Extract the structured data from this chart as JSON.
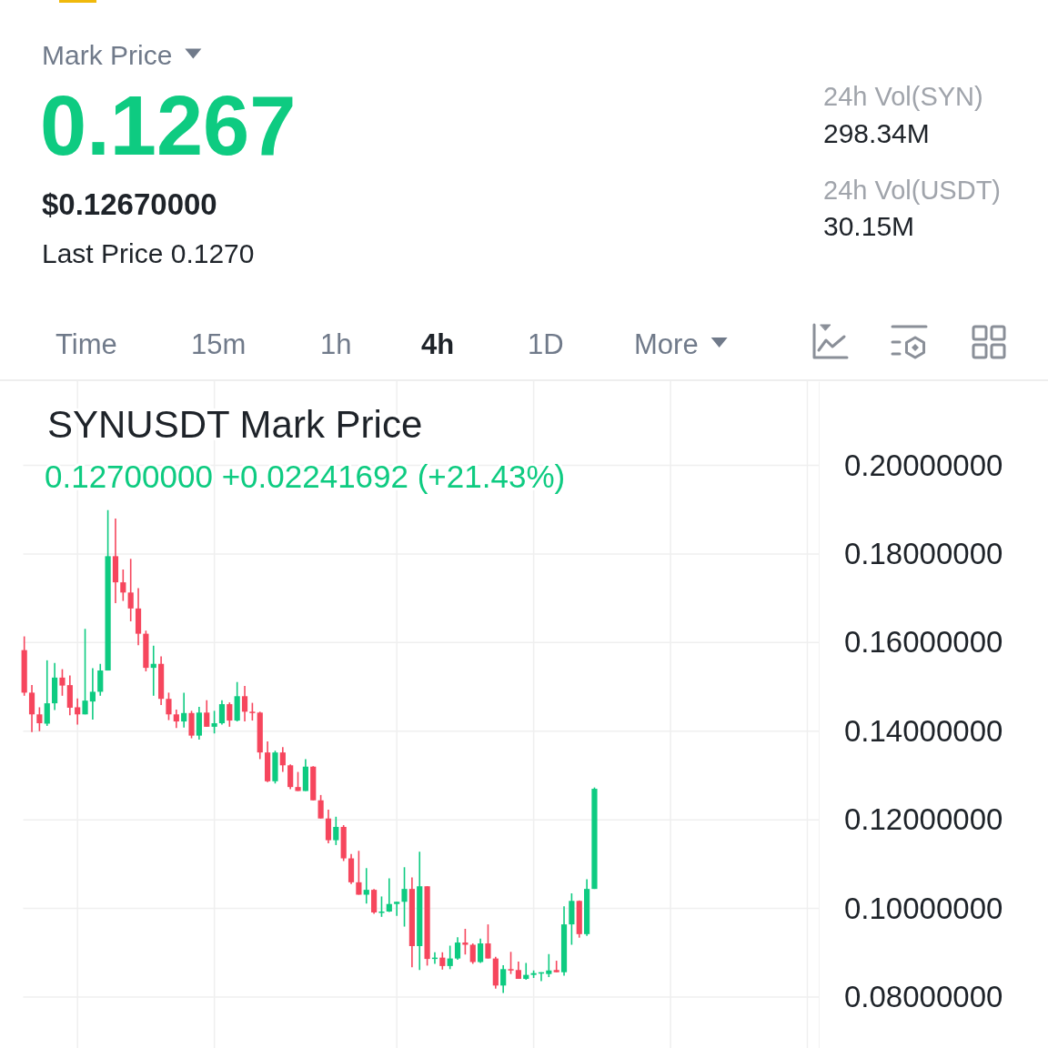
{
  "chart_data": {
    "type": "candlestick",
    "title": "SYNUSDT Mark Price",
    "subtitle": "0.12700000 +0.02241692 (+21.43%)",
    "annotations": [
      "Mark Price",
      "0.1267",
      "$0.12670000",
      "Last Price 0.1270",
      "24h Vol(SYN)",
      "298.34M",
      "24h Vol(USDT)",
      "30.15M",
      "Time",
      "15m",
      "1h",
      "4h",
      "1D",
      "More"
    ],
    "categories": [
      null,
      null,
      null,
      null,
      null,
      null,
      null,
      null,
      null,
      null,
      null,
      null,
      null,
      null,
      null,
      null,
      null,
      null,
      null,
      null,
      null,
      null,
      null,
      null,
      null,
      null,
      null,
      null,
      null,
      null,
      null,
      null,
      null,
      null,
      null,
      null,
      null,
      null,
      null,
      null,
      null,
      null,
      null,
      null,
      null,
      null,
      null,
      null,
      null,
      null,
      null,
      null,
      null,
      null,
      null,
      null,
      null,
      null,
      null,
      null,
      null,
      null,
      null,
      null,
      null,
      null,
      null,
      null,
      null,
      null,
      null,
      null,
      null,
      null,
      null,
      null,
      null,
      null,
      null,
      null,
      null,
      null,
      null,
      null,
      null,
      null,
      null,
      null,
      null,
      null,
      null,
      null,
      null,
      null,
      null,
      null,
      null,
      null,
      null,
      null,
      null,
      null,
      null,
      null,
      null
    ],
    "ohlc": [
      [
        0.1583,
        0.1614,
        0.148,
        0.1487
      ],
      [
        0.1487,
        0.1504,
        0.1398,
        0.1438
      ],
      [
        0.1438,
        0.1454,
        0.14,
        0.1418
      ],
      [
        0.1417,
        0.156,
        0.1412,
        0.1463
      ],
      [
        0.1463,
        0.1554,
        0.1448,
        0.1521
      ],
      [
        0.1521,
        0.154,
        0.148,
        0.1503
      ],
      [
        0.1504,
        0.1526,
        0.1436,
        0.1453
      ],
      [
        0.1454,
        0.1474,
        0.1415,
        0.1438
      ],
      [
        0.1438,
        0.1631,
        0.1438,
        0.1469
      ],
      [
        0.1467,
        0.1542,
        0.1426,
        0.1489
      ],
      [
        0.1489,
        0.1552,
        0.148,
        0.1537
      ],
      [
        0.1537,
        0.1899,
        0.1537,
        0.1795
      ],
      [
        0.1795,
        0.188,
        0.1689,
        0.1736
      ],
      [
        0.1736,
        0.1765,
        0.1694,
        0.1713
      ],
      [
        0.1713,
        0.1789,
        0.1648,
        0.1677
      ],
      [
        0.1677,
        0.1723,
        0.1594,
        0.162
      ],
      [
        0.162,
        0.1627,
        0.1535,
        0.1543
      ],
      [
        0.1543,
        0.1593,
        0.148,
        0.1552
      ],
      [
        0.1552,
        0.1569,
        0.1459,
        0.1473
      ],
      [
        0.1473,
        0.1487,
        0.1425,
        0.1438
      ],
      [
        0.1438,
        0.1449,
        0.1407,
        0.1422
      ],
      [
        0.1422,
        0.1487,
        0.1408,
        0.1441
      ],
      [
        0.1441,
        0.1446,
        0.1384,
        0.139
      ],
      [
        0.139,
        0.1455,
        0.1381,
        0.1442
      ],
      [
        0.1442,
        0.147,
        0.141,
        0.141
      ],
      [
        0.141,
        0.1446,
        0.1395,
        0.1418
      ],
      [
        0.1418,
        0.147,
        0.1415,
        0.1461
      ],
      [
        0.1461,
        0.1465,
        0.141,
        0.1424
      ],
      [
        0.1424,
        0.1511,
        0.1422,
        0.1479
      ],
      [
        0.1479,
        0.1502,
        0.1422,
        0.1444
      ],
      [
        0.1444,
        0.1464,
        0.1424,
        0.1442
      ],
      [
        0.1442,
        0.1444,
        0.1337,
        0.1352
      ],
      [
        0.1352,
        0.1377,
        0.1285,
        0.1287
      ],
      [
        0.1287,
        0.1356,
        0.1282,
        0.1352
      ],
      [
        0.1352,
        0.1364,
        0.1308,
        0.1323
      ],
      [
        0.1323,
        0.1325,
        0.1269,
        0.1274
      ],
      [
        0.1274,
        0.1308,
        0.1265,
        0.1265
      ],
      [
        0.1265,
        0.1337,
        0.1265,
        0.132
      ],
      [
        0.132,
        0.1321,
        0.1244,
        0.1244
      ],
      [
        0.1244,
        0.1256,
        0.1203,
        0.1203
      ],
      [
        0.1203,
        0.1223,
        0.1147,
        0.1154
      ],
      [
        0.1154,
        0.1207,
        0.1143,
        0.1184
      ],
      [
        0.1184,
        0.1188,
        0.1107,
        0.1113
      ],
      [
        0.1113,
        0.1123,
        0.1055,
        0.1059
      ],
      [
        0.1059,
        0.113,
        0.1031,
        0.1031
      ],
      [
        0.1031,
        0.1091,
        0.1011,
        0.1042
      ],
      [
        0.1042,
        0.1044,
        0.0988,
        0.0991
      ],
      [
        0.0991,
        0.1027,
        0.0981,
        0.0993
      ],
      [
        0.0993,
        0.1068,
        0.0992,
        0.101
      ],
      [
        0.101,
        0.1015,
        0.0983,
        0.1015
      ],
      [
        0.1015,
        0.1093,
        0.0959,
        0.1044
      ],
      [
        0.1044,
        0.107,
        0.0867,
        0.0915
      ],
      [
        0.0915,
        0.1128,
        0.0861,
        0.105
      ],
      [
        0.105,
        0.105,
        0.0871,
        0.0886
      ],
      [
        0.0886,
        0.0901,
        0.0875,
        0.0889
      ],
      [
        0.0889,
        0.0901,
        0.0862,
        0.087
      ],
      [
        0.087,
        0.0916,
        0.0863,
        0.0887
      ],
      [
        0.0887,
        0.0935,
        0.0884,
        0.0923
      ],
      [
        0.0923,
        0.0954,
        0.0896,
        0.0918
      ],
      [
        0.0918,
        0.0921,
        0.0875,
        0.0879
      ],
      [
        0.0879,
        0.0932,
        0.0877,
        0.0921
      ],
      [
        0.0921,
        0.0964,
        0.0887,
        0.0887
      ],
      [
        0.0887,
        0.0891,
        0.0819,
        0.0826
      ],
      [
        0.0826,
        0.0872,
        0.0809,
        0.0863
      ],
      [
        0.0863,
        0.0902,
        0.0852,
        0.0861
      ],
      [
        0.0861,
        0.088,
        0.0841,
        0.0841
      ],
      [
        0.0841,
        0.0877,
        0.0839,
        0.085
      ],
      [
        0.085,
        0.086,
        0.0843,
        0.0854
      ],
      [
        0.0854,
        0.0856,
        0.0836,
        0.0856
      ],
      [
        0.0852,
        0.0897,
        0.0845,
        0.086
      ],
      [
        0.0861,
        0.0882,
        0.0856,
        0.0856
      ],
      [
        0.0856,
        0.1005,
        0.0848,
        0.0964
      ],
      [
        0.0964,
        0.1034,
        0.0918,
        0.1017
      ],
      [
        0.1017,
        0.1018,
        0.0934,
        0.0942
      ],
      [
        0.0942,
        0.1066,
        0.0938,
        0.1044
      ],
      [
        0.1044,
        0.1273,
        0.1044,
        0.127
      ],
      null,
      null,
      null,
      null,
      null,
      null,
      null,
      null,
      null,
      null,
      null,
      null,
      null,
      null,
      null,
      null,
      null,
      null,
      null,
      null,
      null,
      null,
      null,
      null,
      null,
      null,
      null,
      null,
      null
    ],
    "colors": [
      "#f6465d",
      "#f6465d",
      "#f6465d",
      "#0ecb81",
      "#0ecb81",
      "#f6465d",
      "#f6465d",
      "#f6465d",
      "#0ecb81",
      "#0ecb81",
      "#0ecb81",
      "#0ecb81",
      "#f6465d",
      "#f6465d",
      "#f6465d",
      "#f6465d",
      "#f6465d",
      "#0ecb81",
      "#f6465d",
      "#f6465d",
      "#f6465d",
      "#0ecb81",
      "#f6465d",
      "#0ecb81",
      "#f6465d",
      "#0ecb81",
      "#0ecb81",
      "#f6465d",
      "#0ecb81",
      "#f6465d",
      "#f6465d",
      "#f6465d",
      "#f6465d",
      "#0ecb81",
      "#f6465d",
      "#f6465d",
      "#f6465d",
      "#0ecb81",
      "#f6465d",
      "#f6465d",
      "#f6465d",
      "#0ecb81",
      "#f6465d",
      "#f6465d",
      "#f6465d",
      "#0ecb81",
      "#f6465d",
      "#0ecb81",
      "#0ecb81",
      "#0ecb81",
      "#0ecb81",
      "#f6465d",
      "#0ecb81",
      "#f6465d",
      "#0ecb81",
      "#f6465d",
      "#0ecb81",
      "#0ecb81",
      "#f6465d",
      "#f6465d",
      "#0ecb81",
      "#f6465d",
      "#f6465d",
      "#0ecb81",
      "#f6465d",
      "#f6465d",
      "#0ecb81",
      "#0ecb81",
      "#0ecb81",
      "#0ecb81",
      "#f6465d",
      "#0ecb81",
      "#0ecb81",
      "#f6465d",
      "#0ecb81",
      "#0ecb81",
      null,
      null,
      null,
      null,
      null,
      null,
      null,
      null,
      null,
      null,
      null,
      null,
      null,
      null,
      null,
      null,
      null,
      null,
      null,
      null,
      null,
      null,
      null,
      null,
      null,
      null,
      null,
      null,
      null
    ],
    "ylim": [
      0.0685,
      0.219
    ],
    "yticks": [
      {
        "value": 0.08,
        "label": "0.08000000"
      },
      {
        "value": 0.1,
        "label": "0.10000000"
      },
      {
        "value": 0.12,
        "label": "0.12000000"
      },
      {
        "value": 0.14,
        "label": "0.14000000"
      },
      {
        "value": 0.16,
        "label": "0.16000000"
      },
      {
        "value": 0.18,
        "label": "0.18000000"
      },
      {
        "value": 0.2,
        "label": "0.20000000"
      }
    ],
    "grid": true
  }
}
